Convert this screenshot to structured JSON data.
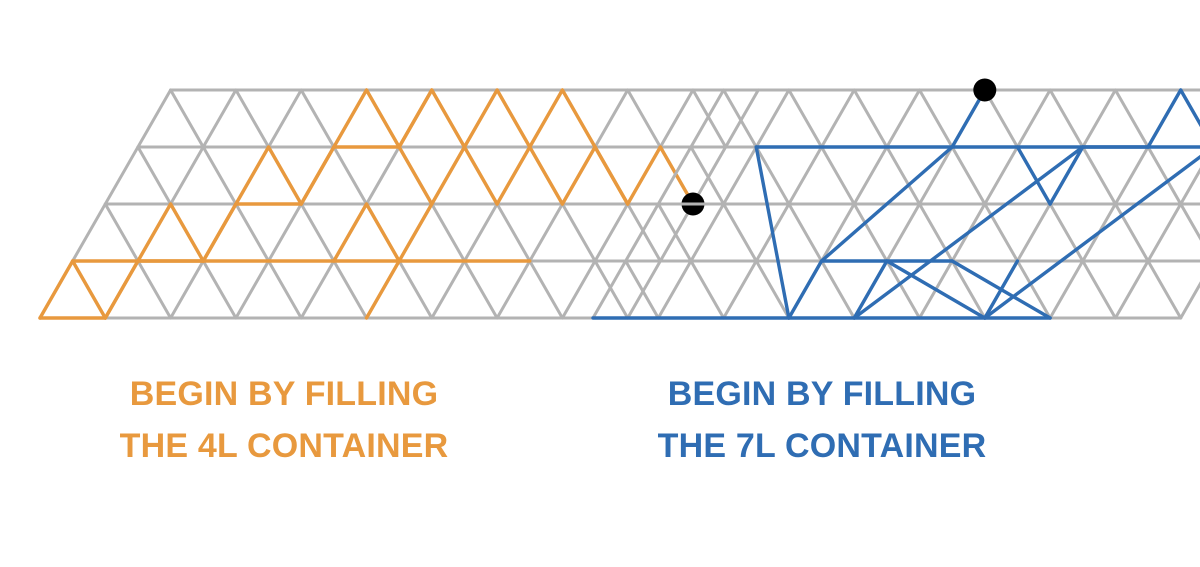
{
  "colors": {
    "grid": "#b3b3b3",
    "left_accent": "#e8993e",
    "right_accent": "#2f6db3",
    "marker": "#000000",
    "background": "#ffffff"
  },
  "panels": [
    {
      "id": "left",
      "caption_lines": [
        "BEGIN BY FILLING",
        "THE 4L CONTAINER"
      ],
      "grid": {
        "columns": 9,
        "rows": 4
      },
      "path_color_key": "left_accent",
      "marker": {
        "lattice_point": [
          9,
          2
        ]
      },
      "path_segments": [
        [
          [
            0,
            0
          ],
          [
            1,
            0
          ]
        ],
        [
          [
            1,
            0
          ],
          [
            1,
            1
          ]
        ],
        [
          [
            1,
            1
          ],
          [
            2,
            1
          ]
        ],
        [
          [
            2,
            1
          ],
          [
            2,
            2
          ]
        ],
        [
          [
            2,
            2
          ],
          [
            3,
            2
          ]
        ],
        [
          [
            3,
            2
          ],
          [
            3,
            3
          ]
        ],
        [
          [
            3,
            3
          ],
          [
            4,
            3
          ]
        ],
        [
          [
            4,
            3
          ],
          [
            4,
            4
          ]
        ],
        [
          [
            4,
            4
          ],
          [
            4,
            3
          ]
        ],
        [
          [
            4,
            3
          ],
          [
            5,
            2
          ]
        ],
        [
          [
            5,
            2
          ],
          [
            5,
            3
          ]
        ],
        [
          [
            5,
            3
          ],
          [
            6,
            2
          ]
        ],
        [
          [
            6,
            2
          ],
          [
            6,
            3
          ]
        ],
        [
          [
            6,
            3
          ],
          [
            7,
            2
          ]
        ],
        [
          [
            7,
            2
          ],
          [
            7,
            3
          ]
        ],
        [
          [
            7,
            3
          ],
          [
            8,
            2
          ]
        ],
        [
          [
            8,
            2
          ],
          [
            8,
            3
          ]
        ],
        [
          [
            8,
            3
          ],
          [
            9,
            2
          ]
        ],
        [
          [
            0,
            0
          ],
          [
            0,
            1
          ]
        ],
        [
          [
            0,
            1
          ],
          [
            1,
            0
          ]
        ],
        [
          [
            1,
            0
          ],
          [
            1,
            1
          ]
        ],
        [
          [
            1,
            1
          ],
          [
            1,
            2
          ]
        ],
        [
          [
            1,
            2
          ],
          [
            2,
            1
          ]
        ],
        [
          [
            2,
            1
          ],
          [
            2,
            2
          ]
        ],
        [
          [
            2,
            2
          ],
          [
            2,
            3
          ]
        ],
        [
          [
            2,
            3
          ],
          [
            3,
            2
          ]
        ],
        [
          [
            3,
            2
          ],
          [
            3,
            3
          ]
        ],
        [
          [
            3,
            3
          ],
          [
            3,
            4
          ]
        ],
        [
          [
            3,
            4
          ],
          [
            4,
            3
          ]
        ],
        [
          [
            4,
            4
          ],
          [
            5,
            3
          ]
        ],
        [
          [
            5,
            3
          ],
          [
            5,
            4
          ]
        ],
        [
          [
            5,
            4
          ],
          [
            6,
            3
          ]
        ],
        [
          [
            6,
            3
          ],
          [
            6,
            4
          ]
        ],
        [
          [
            6,
            4
          ],
          [
            7,
            3
          ]
        ],
        [
          [
            7,
            3
          ],
          [
            8,
            2
          ]
        ],
        [
          [
            4,
            1
          ],
          [
            4,
            2
          ]
        ],
        [
          [
            4,
            2
          ],
          [
            5,
            1
          ]
        ],
        [
          [
            5,
            1
          ],
          [
            5,
            2
          ]
        ],
        [
          [
            0,
            1
          ],
          [
            7,
            1
          ]
        ],
        [
          [
            5,
            0
          ],
          [
            5,
            1
          ]
        ]
      ]
    },
    {
      "id": "right",
      "caption_lines": [
        "BEGIN BY FILLING",
        "THE 7L CONTAINER"
      ],
      "grid": {
        "columns": 9,
        "rows": 4
      },
      "path_color_key": "right_accent",
      "marker": {
        "lattice_point": [
          4,
          4
        ]
      },
      "path_segments": [
        [
          [
            0,
            0
          ],
          [
            7,
            0
          ]
        ],
        [
          [
            1,
            3
          ],
          [
            8,
            3
          ]
        ],
        [
          [
            3,
            0
          ],
          [
            1,
            3
          ]
        ],
        [
          [
            3,
            0
          ],
          [
            3,
            1
          ]
        ],
        [
          [
            3,
            1
          ],
          [
            4,
            3
          ]
        ],
        [
          [
            4,
            3
          ],
          [
            4,
            4
          ]
        ],
        [
          [
            3,
            1
          ],
          [
            5,
            1
          ]
        ],
        [
          [
            4,
            0
          ],
          [
            6,
            3
          ]
        ],
        [
          [
            6,
            3
          ],
          [
            7,
            3
          ]
        ],
        [
          [
            6,
            0
          ],
          [
            8,
            3
          ]
        ],
        [
          [
            4,
            0
          ],
          [
            4,
            1
          ]
        ],
        [
          [
            4,
            1
          ],
          [
            6,
            0
          ]
        ],
        [
          [
            5,
            1
          ],
          [
            7,
            0
          ]
        ],
        [
          [
            7,
            3
          ],
          [
            7,
            4
          ]
        ],
        [
          [
            7,
            4
          ],
          [
            8,
            3
          ]
        ],
        [
          [
            6,
            0
          ],
          [
            6,
            1
          ]
        ],
        [
          [
            5,
            3
          ],
          [
            6,
            2
          ]
        ],
        [
          [
            6,
            2
          ],
          [
            6,
            3
          ]
        ]
      ]
    }
  ]
}
